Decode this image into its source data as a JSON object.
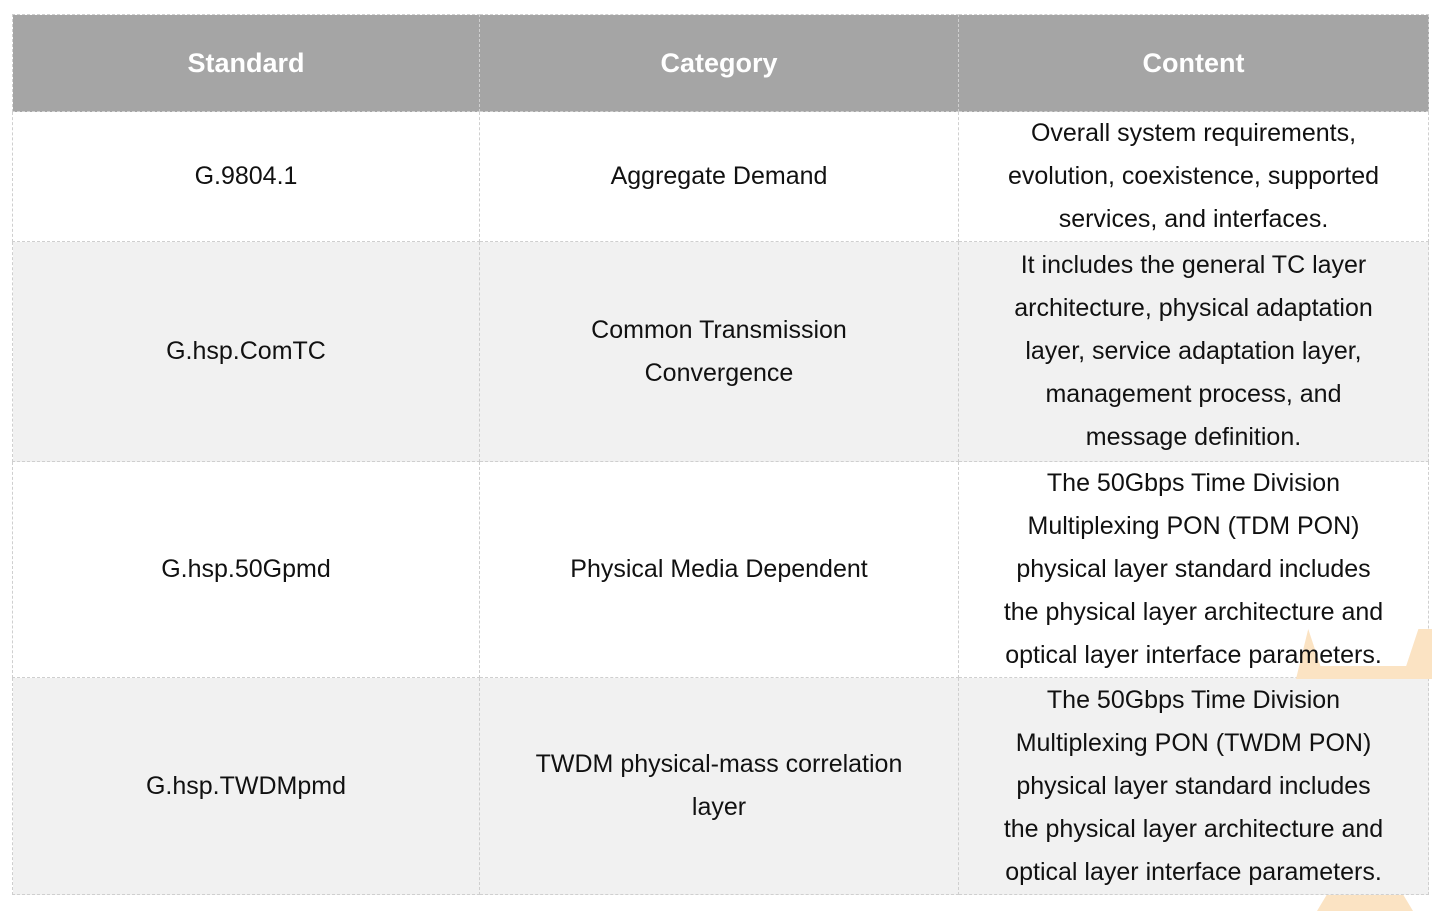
{
  "table": {
    "header": {
      "standard": "Standard",
      "category": "Category",
      "content": "Content"
    },
    "rows": [
      {
        "standard": "G.9804.1",
        "category": "Aggregate Demand",
        "content": "Overall system requirements,\nevolution, coexistence, supported\nservices, and interfaces."
      },
      {
        "standard": "G.hsp.ComTC",
        "category": "Common Transmission\nConvergence",
        "content": "It includes the general TC layer\narchitecture, physical adaptation\nlayer, service adaptation layer,\nmanagement process, and\nmessage definition."
      },
      {
        "standard": "G.hsp.50Gpmd",
        "category": "Physical Media Dependent",
        "content": "The 50Gbps Time Division\nMultiplexing PON (TDM PON)\nphysical layer standard includes\nthe physical layer architecture and\noptical layer interface parameters."
      },
      {
        "standard": "G.hsp.TWDMpmd",
        "category": "TWDM physical-mass correlation\nlayer",
        "content": "The 50Gbps Time Division\nMultiplexing PON (TWDM PON)\nphysical layer standard includes\nthe physical layer architecture and\noptical layer interface parameters."
      }
    ]
  },
  "colors": {
    "header_bg": "#a5a5a5",
    "header_text": "#ffffff",
    "row_bg": "#ffffff",
    "row_alt_bg": "#f1f1f1",
    "border": "#cfcfcf",
    "text": "#111111",
    "watermark": "#fbe3c3"
  }
}
